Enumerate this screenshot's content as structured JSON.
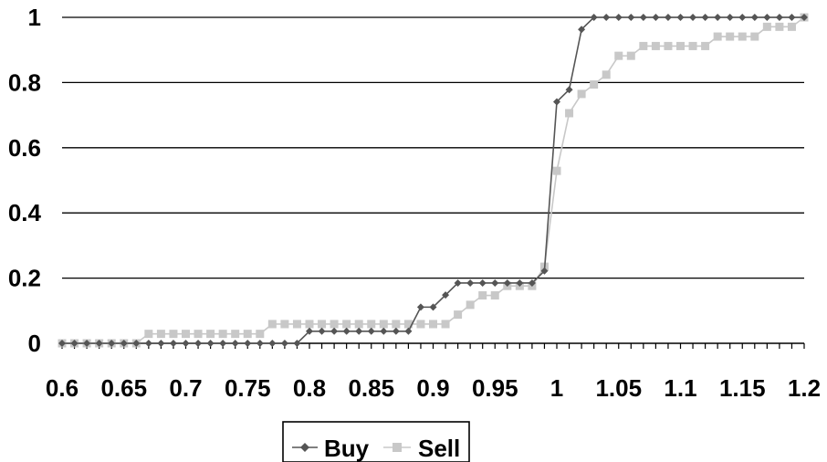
{
  "chart_data": {
    "type": "line",
    "title": "",
    "xlabel": "",
    "ylabel": "",
    "xlim": [
      0.6,
      1.2
    ],
    "ylim": [
      0,
      1
    ],
    "x_ticks": [
      0.6,
      0.65,
      0.7,
      0.75,
      0.8,
      0.85,
      0.9,
      0.95,
      1,
      1.05,
      1.1,
      1.15,
      1.2
    ],
    "x_tick_labels": [
      "0.6",
      "0.65",
      "0.7",
      "0.75",
      "0.8",
      "0.85",
      "0.9",
      "0.95",
      "1",
      "1.05",
      "1.1",
      "1.15",
      "1.2"
    ],
    "y_ticks": [
      0,
      0.2,
      0.4,
      0.6,
      0.8,
      1
    ],
    "y_tick_labels": [
      "0",
      "0.2",
      "0.4",
      "0.6",
      "0.8",
      "1"
    ],
    "grid": "horizontal",
    "legend_position": "bottom",
    "x": [
      0.6,
      0.61,
      0.62,
      0.63,
      0.64,
      0.65,
      0.66,
      0.67,
      0.68,
      0.69,
      0.7,
      0.71,
      0.72,
      0.73,
      0.74,
      0.75,
      0.76,
      0.77,
      0.78,
      0.79,
      0.8,
      0.81,
      0.82,
      0.83,
      0.84,
      0.85,
      0.86,
      0.87,
      0.88,
      0.89,
      0.9,
      0.91,
      0.92,
      0.93,
      0.94,
      0.95,
      0.96,
      0.97,
      0.98,
      0.99,
      1.0,
      1.01,
      1.02,
      1.03,
      1.04,
      1.05,
      1.06,
      1.07,
      1.08,
      1.09,
      1.1,
      1.11,
      1.12,
      1.13,
      1.14,
      1.15,
      1.16,
      1.17,
      1.18,
      1.19,
      1.2
    ],
    "series": [
      {
        "name": "Buy",
        "color": "#555555",
        "marker": "diamond",
        "values": [
          0,
          0,
          0,
          0,
          0,
          0,
          0,
          0,
          0,
          0,
          0,
          0,
          0,
          0,
          0,
          0,
          0,
          0,
          0,
          0,
          0.037,
          0.037,
          0.037,
          0.037,
          0.037,
          0.037,
          0.037,
          0.037,
          0.037,
          0.111,
          0.111,
          0.148,
          0.185,
          0.185,
          0.185,
          0.185,
          0.185,
          0.185,
          0.185,
          0.222,
          0.741,
          0.778,
          0.963,
          1,
          1,
          1,
          1,
          1,
          1,
          1,
          1,
          1,
          1,
          1,
          1,
          1,
          1,
          1,
          1,
          1,
          1
        ]
      },
      {
        "name": "Sell",
        "color": "#c8c8c8",
        "marker": "square",
        "values": [
          0,
          0,
          0,
          0,
          0,
          0,
          0,
          0.029,
          0.029,
          0.029,
          0.029,
          0.029,
          0.029,
          0.029,
          0.029,
          0.029,
          0.029,
          0.059,
          0.059,
          0.059,
          0.059,
          0.059,
          0.059,
          0.059,
          0.059,
          0.059,
          0.059,
          0.059,
          0.059,
          0.059,
          0.059,
          0.059,
          0.088,
          0.118,
          0.147,
          0.147,
          0.176,
          0.176,
          0.176,
          0.235,
          0.529,
          0.706,
          0.765,
          0.794,
          0.824,
          0.882,
          0.882,
          0.912,
          0.912,
          0.912,
          0.912,
          0.912,
          0.912,
          0.941,
          0.941,
          0.941,
          0.941,
          0.971,
          0.971,
          0.971,
          1
        ]
      }
    ]
  }
}
